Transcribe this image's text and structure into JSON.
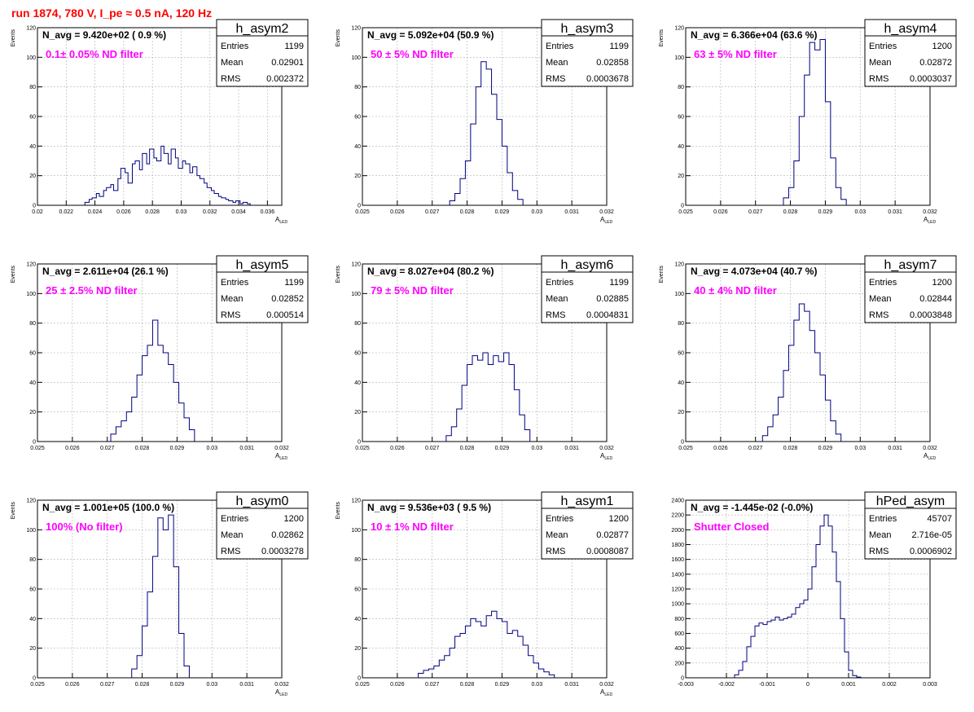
{
  "page_title": "run 1874,   780 V, I_pe ≈ 0.5 nA, 120 Hz",
  "stat_labels": {
    "entries": "Entries",
    "mean": "Mean",
    "rms": "RMS"
  },
  "colors": {
    "title": "#ff0000",
    "annotation": "#ff00ff",
    "histogram": "#000080",
    "grid": "#b0b0b0"
  },
  "chart_data": [
    {
      "type": "histogram",
      "name": "h_asym2",
      "navg": "N_avg = 9.420e+02 ( 0.9 %)",
      "filter": "0.1± 0.05% ND filter",
      "entries": "1199",
      "mean": "0.02901",
      "rms": "0.002372",
      "ylabel": "Events",
      "xlabel": "A",
      "xlabel_sub": "LED",
      "xlim": [
        0.02,
        0.037
      ],
      "ylim": [
        0,
        120
      ],
      "xticks": [
        0.02,
        0.022,
        0.024,
        0.026,
        0.028,
        0.03,
        0.032,
        0.034,
        0.036
      ],
      "xtick_labels": [
        "0.02",
        "0.022",
        "0.024",
        "0.026",
        "0.028",
        "0.03",
        "0.032",
        "0.034",
        "0.036"
      ],
      "yticks": [
        0,
        20,
        40,
        60,
        80,
        100,
        120
      ],
      "ytick_labels": [
        "0",
        "20",
        "40",
        "60",
        "80",
        "100",
        "120"
      ],
      "bin_edges_x": [
        0.0233,
        0.0236,
        0.0238,
        0.0241,
        0.0243,
        0.0246,
        0.0248,
        0.0251,
        0.0253,
        0.0256,
        0.0258,
        0.0261,
        0.0263,
        0.0266,
        0.0268,
        0.0271,
        0.0273,
        0.0276,
        0.0278,
        0.0281,
        0.0283,
        0.0286,
        0.0288,
        0.0291,
        0.0293,
        0.0296,
        0.0298,
        0.0301,
        0.0303,
        0.0306,
        0.0308,
        0.0311,
        0.0313,
        0.0316,
        0.0318,
        0.0321,
        0.0323,
        0.0326,
        0.0328,
        0.0331,
        0.0333,
        0.0336,
        0.0338,
        0.0341,
        0.0343,
        0.0346,
        0.0348
      ],
      "bin_counts": [
        2,
        4,
        5,
        8,
        6,
        10,
        12,
        14,
        10,
        18,
        25,
        22,
        15,
        28,
        30,
        24,
        35,
        28,
        38,
        32,
        30,
        40,
        35,
        28,
        38,
        32,
        25,
        30,
        28,
        22,
        26,
        20,
        18,
        15,
        12,
        10,
        8,
        6,
        5,
        4,
        3,
        2,
        3,
        1,
        2,
        1
      ]
    },
    {
      "type": "histogram",
      "name": "h_asym3",
      "navg": "N_avg = 5.092e+04 (50.9 %)",
      "filter": "50 ± 5% ND filter",
      "entries": "1199",
      "mean": "0.02858",
      "rms": "0.0003678",
      "ylabel": "Events",
      "xlabel": "A",
      "xlabel_sub": "LED",
      "xlim": [
        0.025,
        0.032
      ],
      "ylim": [
        0,
        120
      ],
      "xticks": [
        0.025,
        0.026,
        0.027,
        0.028,
        0.029,
        0.03,
        0.031,
        0.032
      ],
      "xtick_labels": [
        "0.025",
        "0.026",
        "0.027",
        "0.028",
        "0.029",
        "0.03",
        "0.031",
        "0.032"
      ],
      "yticks": [
        0,
        20,
        40,
        60,
        80,
        100,
        120
      ],
      "ytick_labels": [
        "0",
        "20",
        "40",
        "60",
        "80",
        "100",
        "120"
      ],
      "bin_edges_x": [
        0.0275,
        0.02765,
        0.0278,
        0.02795,
        0.0281,
        0.02825,
        0.0284,
        0.02855,
        0.0287,
        0.02885,
        0.029,
        0.02915,
        0.0293,
        0.02945,
        0.0296
      ],
      "bin_counts": [
        3,
        8,
        18,
        30,
        55,
        80,
        97,
        92,
        75,
        58,
        40,
        22,
        10,
        4
      ]
    },
    {
      "type": "histogram",
      "name": "h_asym4",
      "navg": "N_avg = 6.366e+04 (63.6 %)",
      "filter": "63 ± 5% ND filter",
      "entries": "1200",
      "mean": "0.02872",
      "rms": "0.0003037",
      "ylabel": "Events",
      "xlabel": "A",
      "xlabel_sub": "LED",
      "xlim": [
        0.025,
        0.032
      ],
      "ylim": [
        0,
        120
      ],
      "xticks": [
        0.025,
        0.026,
        0.027,
        0.028,
        0.029,
        0.03,
        0.031,
        0.032
      ],
      "xtick_labels": [
        "0.025",
        "0.026",
        "0.027",
        "0.028",
        "0.029",
        "0.03",
        "0.031",
        "0.032"
      ],
      "yticks": [
        0,
        20,
        40,
        60,
        80,
        100,
        120
      ],
      "ytick_labels": [
        "0",
        "20",
        "40",
        "60",
        "80",
        "100",
        "120"
      ],
      "bin_edges_x": [
        0.0278,
        0.02795,
        0.0281,
        0.02825,
        0.0284,
        0.02855,
        0.0287,
        0.02885,
        0.029,
        0.02915,
        0.0293,
        0.02945,
        0.0296
      ],
      "bin_counts": [
        5,
        12,
        30,
        60,
        88,
        110,
        105,
        112,
        70,
        32,
        12,
        4
      ]
    },
    {
      "type": "histogram",
      "name": "h_asym5",
      "navg": "N_avg = 2.611e+04 (26.1 %)",
      "filter": "25 ± 2.5% ND filter",
      "entries": "1199",
      "mean": "0.02852",
      "rms": "0.000514",
      "ylabel": "Events",
      "xlabel": "A",
      "xlabel_sub": "LED",
      "xlim": [
        0.025,
        0.032
      ],
      "ylim": [
        0,
        120
      ],
      "xticks": [
        0.025,
        0.026,
        0.027,
        0.028,
        0.029,
        0.03,
        0.031,
        0.032
      ],
      "xtick_labels": [
        "0.025",
        "0.026",
        "0.027",
        "0.028",
        "0.029",
        "0.03",
        "0.031",
        "0.032"
      ],
      "yticks": [
        0,
        20,
        40,
        60,
        80,
        100,
        120
      ],
      "ytick_labels": [
        "0",
        "20",
        "40",
        "60",
        "80",
        "100",
        "120"
      ],
      "bin_edges_x": [
        0.0271,
        0.02725,
        0.0274,
        0.02755,
        0.0277,
        0.02785,
        0.028,
        0.02815,
        0.0283,
        0.02845,
        0.0286,
        0.02875,
        0.0289,
        0.02905,
        0.0292,
        0.02935,
        0.0295
      ],
      "bin_counts": [
        5,
        10,
        14,
        20,
        30,
        45,
        58,
        65,
        82,
        65,
        60,
        52,
        40,
        26,
        16,
        8
      ]
    },
    {
      "type": "histogram",
      "name": "h_asym6",
      "navg": "N_avg = 8.027e+04 (80.2 %)",
      "filter": "79 ± 5% ND filter",
      "entries": "1199",
      "mean": "0.02885",
      "rms": "0.0004831",
      "ylabel": "Events",
      "xlabel": "A",
      "xlabel_sub": "LED",
      "xlim": [
        0.025,
        0.032
      ],
      "ylim": [
        0,
        120
      ],
      "xticks": [
        0.025,
        0.026,
        0.027,
        0.028,
        0.029,
        0.03,
        0.031,
        0.032
      ],
      "xtick_labels": [
        "0.025",
        "0.026",
        "0.027",
        "0.028",
        "0.029",
        "0.03",
        "0.031",
        "0.032"
      ],
      "yticks": [
        0,
        20,
        40,
        60,
        80,
        100,
        120
      ],
      "ytick_labels": [
        "0",
        "20",
        "40",
        "60",
        "80",
        "100",
        "120"
      ],
      "bin_edges_x": [
        0.0274,
        0.02755,
        0.0277,
        0.02785,
        0.028,
        0.02815,
        0.0283,
        0.02845,
        0.0286,
        0.02875,
        0.0289,
        0.02905,
        0.0292,
        0.02935,
        0.0295,
        0.02965,
        0.0298
      ],
      "bin_counts": [
        4,
        10,
        22,
        38,
        52,
        58,
        55,
        60,
        52,
        58,
        54,
        60,
        52,
        35,
        18,
        8
      ]
    },
    {
      "type": "histogram",
      "name": "h_asym7",
      "navg": "N_avg = 4.073e+04 (40.7 %)",
      "filter": "40 ± 4% ND filter",
      "entries": "1200",
      "mean": "0.02844",
      "rms": "0.0003848",
      "ylabel": "Events",
      "xlabel": "A",
      "xlabel_sub": "LED",
      "xlim": [
        0.025,
        0.032
      ],
      "ylim": [
        0,
        120
      ],
      "xticks": [
        0.025,
        0.026,
        0.027,
        0.028,
        0.029,
        0.03,
        0.031,
        0.032
      ],
      "xtick_labels": [
        "0.025",
        "0.026",
        "0.027",
        "0.028",
        "0.029",
        "0.03",
        "0.031",
        "0.032"
      ],
      "yticks": [
        0,
        20,
        40,
        60,
        80,
        100,
        120
      ],
      "ytick_labels": [
        "0",
        "20",
        "40",
        "60",
        "80",
        "100",
        "120"
      ],
      "bin_edges_x": [
        0.0272,
        0.02735,
        0.0275,
        0.02765,
        0.0278,
        0.02795,
        0.0281,
        0.02825,
        0.0284,
        0.02855,
        0.0287,
        0.02885,
        0.029,
        0.02915,
        0.0293,
        0.02945
      ],
      "bin_counts": [
        4,
        10,
        18,
        30,
        48,
        65,
        82,
        93,
        88,
        75,
        60,
        45,
        28,
        14,
        5
      ]
    },
    {
      "type": "histogram",
      "name": "h_asym0",
      "navg": "N_avg = 1.001e+05 (100.0 %)",
      "filter": "100% (No filter)",
      "entries": "1200",
      "mean": "0.02862",
      "rms": "0.0003278",
      "ylabel": "Events",
      "xlabel": "A",
      "xlabel_sub": "LED",
      "xlim": [
        0.025,
        0.032
      ],
      "ylim": [
        0,
        120
      ],
      "xticks": [
        0.025,
        0.026,
        0.027,
        0.028,
        0.029,
        0.03,
        0.031,
        0.032
      ],
      "xtick_labels": [
        "0.025",
        "0.026",
        "0.027",
        "0.028",
        "0.029",
        "0.03",
        "0.031",
        "0.032"
      ],
      "yticks": [
        0,
        20,
        40,
        60,
        80,
        100,
        120
      ],
      "ytick_labels": [
        "0",
        "20",
        "40",
        "60",
        "80",
        "100",
        "120"
      ],
      "bin_edges_x": [
        0.0277,
        0.02785,
        0.028,
        0.02815,
        0.0283,
        0.02845,
        0.0286,
        0.02875,
        0.0289,
        0.02905,
        0.0292,
        0.02935
      ],
      "bin_counts": [
        6,
        15,
        35,
        58,
        82,
        108,
        100,
        110,
        75,
        30,
        8
      ]
    },
    {
      "type": "histogram",
      "name": "h_asym1",
      "navg": "N_avg = 9.536e+03 ( 9.5 %)",
      "filter": "10 ± 1% ND filter",
      "entries": "1200",
      "mean": "0.02877",
      "rms": "0.0008087",
      "ylabel": "Events",
      "xlabel": "A",
      "xlabel_sub": "LED",
      "xlim": [
        0.025,
        0.032
      ],
      "ylim": [
        0,
        120
      ],
      "xticks": [
        0.025,
        0.026,
        0.027,
        0.028,
        0.029,
        0.03,
        0.031,
        0.032
      ],
      "xtick_labels": [
        "0.025",
        "0.026",
        "0.027",
        "0.028",
        "0.029",
        "0.03",
        "0.031",
        "0.032"
      ],
      "yticks": [
        0,
        20,
        40,
        60,
        80,
        100,
        120
      ],
      "ytick_labels": [
        "0",
        "20",
        "40",
        "60",
        "80",
        "100",
        "120"
      ],
      "bin_edges_x": [
        0.0266,
        0.02675,
        0.0269,
        0.02705,
        0.0272,
        0.02735,
        0.0275,
        0.02765,
        0.0278,
        0.02795,
        0.0281,
        0.02825,
        0.0284,
        0.02855,
        0.0287,
        0.02885,
        0.029,
        0.02915,
        0.0293,
        0.02945,
        0.0296,
        0.02975,
        0.0299,
        0.03005,
        0.0302,
        0.03035,
        0.0305
      ],
      "bin_counts": [
        3,
        5,
        6,
        8,
        12,
        15,
        20,
        28,
        30,
        35,
        40,
        38,
        35,
        42,
        45,
        40,
        38,
        30,
        32,
        28,
        22,
        15,
        10,
        6,
        4,
        2
      ]
    },
    {
      "type": "histogram",
      "name": "hPed_asym",
      "navg": "N_avg = -1.445e-02 (-0.0%)",
      "filter": "Shutter Closed",
      "entries": "45707",
      "mean": "2.716e-05",
      "rms": "0.0006902",
      "ylabel": "",
      "xlabel": "",
      "xlabel_sub": "",
      "xlim": [
        -0.003,
        0.003
      ],
      "ylim": [
        0,
        2400
      ],
      "xticks": [
        -0.003,
        -0.002,
        -0.001,
        0,
        0.001,
        0.002,
        0.003
      ],
      "xtick_labels": [
        "-0.003",
        "-0.002",
        "-0.001",
        "0",
        "0.001",
        "0.002",
        "0.003"
      ],
      "yticks": [
        0,
        200,
        400,
        600,
        800,
        1000,
        1200,
        1400,
        1600,
        1800,
        2000,
        2200,
        2400
      ],
      "ytick_labels": [
        "0",
        "200",
        "400",
        "600",
        "800",
        "1000",
        "1200",
        "1400",
        "1600",
        "1800",
        "2000",
        "2200",
        "2400"
      ],
      "bin_edges_x": [
        -0.0018,
        -0.0017,
        -0.0016,
        -0.0015,
        -0.0014,
        -0.0013,
        -0.0012,
        -0.0011,
        -0.001,
        -0.0009,
        -0.0008,
        -0.0007,
        -0.0006,
        -0.0005,
        -0.0004,
        -0.0003,
        -0.0002,
        -0.0001,
        0,
        0.0001,
        0.0002,
        0.0003,
        0.0004,
        0.0005,
        0.0006,
        0.0007,
        0.0008,
        0.0009,
        0.001,
        0.0011,
        0.0012,
        0.0013
      ],
      "bin_counts": [
        40,
        100,
        220,
        420,
        560,
        700,
        740,
        720,
        760,
        780,
        820,
        780,
        800,
        820,
        860,
        950,
        1000,
        1050,
        1200,
        1500,
        1800,
        2050,
        2200,
        2050,
        1700,
        1300,
        800,
        350,
        100,
        30,
        10
      ]
    }
  ]
}
